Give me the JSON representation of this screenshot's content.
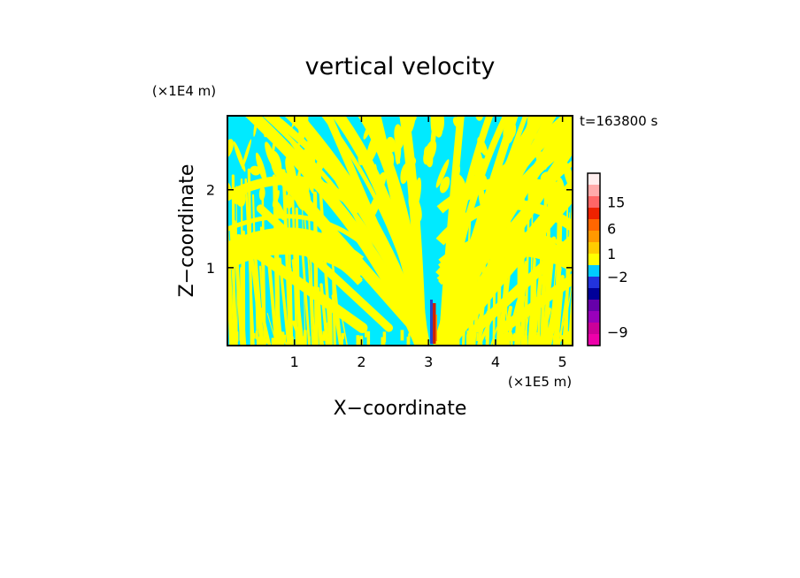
{
  "chart_data": {
    "type": "heatmap",
    "title": "vertical velocity",
    "xlabel": "X−coordinate",
    "ylabel": "Z−coordinate",
    "x_unit": "(×1E5 m)",
    "y_unit": "(×1E4 m)",
    "time_label": "t=163800 s",
    "xlim": [
      0,
      5.15
    ],
    "ylim": [
      0,
      2.95
    ],
    "x_ticks": [
      1,
      2,
      3,
      4,
      5
    ],
    "y_ticks": [
      1,
      2
    ],
    "colorbar": {
      "colors": [
        "#ee00aa",
        "#cc0099",
        "#9900bb",
        "#6600aa",
        "#000099",
        "#2233dd",
        "#00ccff",
        "#ffff00",
        "#ffcc00",
        "#ff9900",
        "#ff6600",
        "#ee2200",
        "#ff6666",
        "#ffaaaa",
        "#ffeeee"
      ],
      "tick_labels": [
        {
          "label": "15",
          "level": 12.5
        },
        {
          "label": "6",
          "level": 10.2
        },
        {
          "label": "1",
          "level": 8.0
        },
        {
          "label": "−2",
          "level": 6.0
        },
        {
          "label": "−9",
          "level": 1.2
        }
      ]
    },
    "field_description_colors": {
      "negative_small": "#00eaff",
      "positive_small": "#ffff00",
      "updraft_core": "#cc2200",
      "downdraft_core": "#2244cc"
    },
    "updraft_center_x": 3.07
  }
}
